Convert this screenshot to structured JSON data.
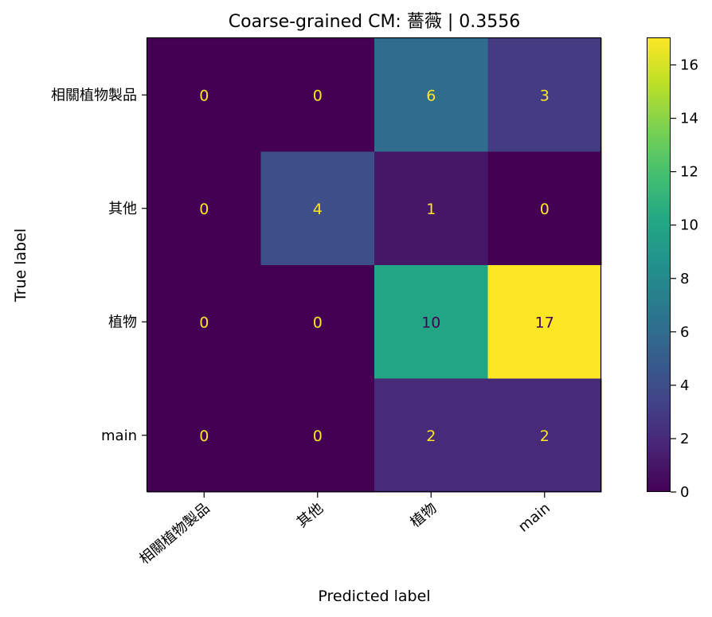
{
  "chart_data": {
    "type": "heatmap",
    "title": "Coarse-grained CM: 薔薇 | 0.3556",
    "xlabel": "Predicted label",
    "ylabel": "True label",
    "x_categories": [
      "相關植物製品",
      "其他",
      "植物",
      "main"
    ],
    "y_categories": [
      "相關植物製品",
      "其他",
      "植物",
      "main"
    ],
    "matrix": [
      [
        0,
        0,
        6,
        3
      ],
      [
        0,
        4,
        1,
        0
      ],
      [
        0,
        0,
        10,
        17
      ],
      [
        0,
        0,
        2,
        2
      ]
    ],
    "colormap": "viridis",
    "value_range": [
      0,
      17
    ],
    "colorbar_ticks": [
      0,
      2,
      4,
      6,
      8,
      10,
      12,
      14,
      16
    ],
    "grid": false,
    "text_colors": {
      "on_dark": "#fde725",
      "on_light": "#440154"
    }
  }
}
